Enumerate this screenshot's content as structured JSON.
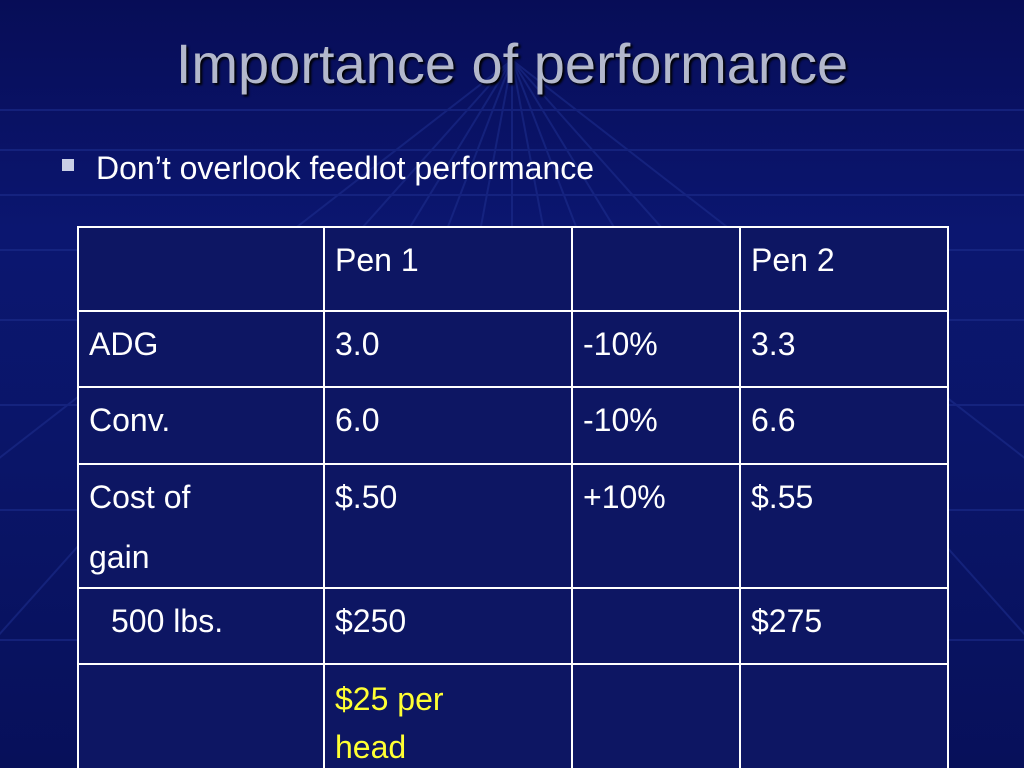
{
  "slide": {
    "title": "Importance of performance",
    "bullet": "Don’t overlook feedlot performance"
  },
  "table": {
    "header": [
      "",
      "Pen 1",
      "",
      "Pen 2"
    ],
    "rows": [
      [
        "ADG",
        "3.0",
        "-10%",
        "3.3"
      ],
      [
        "Conv.",
        "6.0",
        "-10%",
        "6.6"
      ],
      [
        "Cost of gain",
        "$.50",
        "+10%",
        "$.55"
      ],
      [
        "500 lbs.",
        "$250",
        "",
        "$275"
      ],
      [
        "",
        "$25 per head",
        "",
        ""
      ]
    ],
    "cost_of_gain_line1": "Cost of",
    "cost_of_gain_line2": "gain",
    "per_head_line1": "$25 per",
    "per_head_line2": "head"
  },
  "colors": {
    "background": "#0a1568",
    "title": "#b3b8cc",
    "highlight": "#ffff33"
  }
}
